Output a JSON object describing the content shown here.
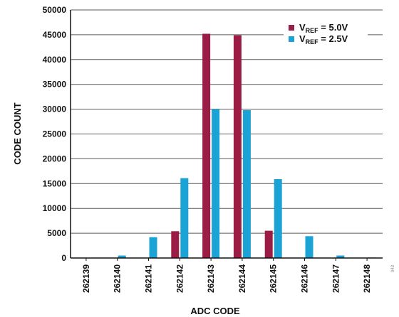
{
  "chart_data": {
    "type": "bar",
    "xlabel": "ADC CODE",
    "ylabel": "CODE COUNT",
    "ylim": [
      0,
      50000
    ],
    "yticks": [
      "0",
      "5000",
      "10000",
      "15000",
      "20000",
      "25000",
      "30000",
      "35000",
      "40000",
      "45000",
      "50000"
    ],
    "categories": [
      "262139",
      "262140",
      "262141",
      "262142",
      "262143",
      "262144",
      "262145",
      "262146",
      "262147",
      "262148"
    ],
    "grid": true,
    "legend_position": "top-right",
    "series": [
      {
        "name": "V_REF = 5.0V",
        "legend_main": "V",
        "legend_sub": "REF",
        "legend_rest": " = 5.0V",
        "color": "#9b1c45",
        "values": [
          0,
          0,
          0,
          5400,
          45200,
          44900,
          5500,
          0,
          0,
          0
        ]
      },
      {
        "name": "V_REF = 2.5V",
        "legend_main": "V",
        "legend_sub": "REF",
        "legend_rest": " = 2.5V",
        "color": "#1aa3d4",
        "values": [
          0,
          500,
          4200,
          16100,
          30000,
          29800,
          15900,
          4400,
          500,
          100
        ]
      }
    ],
    "figure_id": "043"
  }
}
